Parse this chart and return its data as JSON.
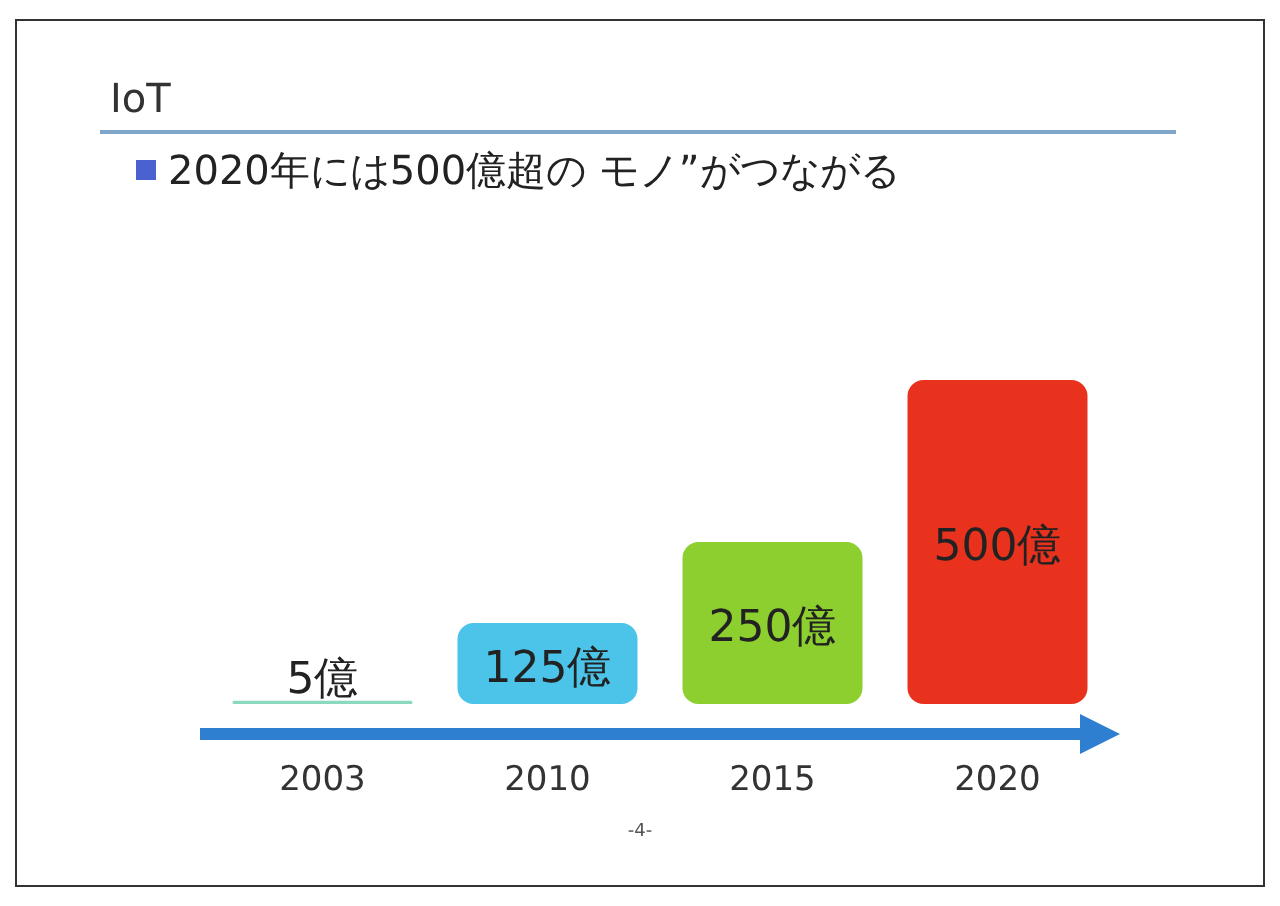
{
  "chart_data": {
    "type": "bar",
    "title": "IoT",
    "subtitle": "2020年には500億超の モノ”がつながる",
    "categories": [
      "2003",
      "2010",
      "2015",
      "2020"
    ],
    "values": [
      5,
      125,
      250,
      500
    ],
    "colors": [
      "#8ad8c0",
      "#4cc4ea",
      "#8ccf2e",
      "#e8321e"
    ],
    "value_labels": [
      "5億",
      "125億",
      "250億",
      "500億"
    ],
    "annotations": [
      "-4-"
    ]
  }
}
